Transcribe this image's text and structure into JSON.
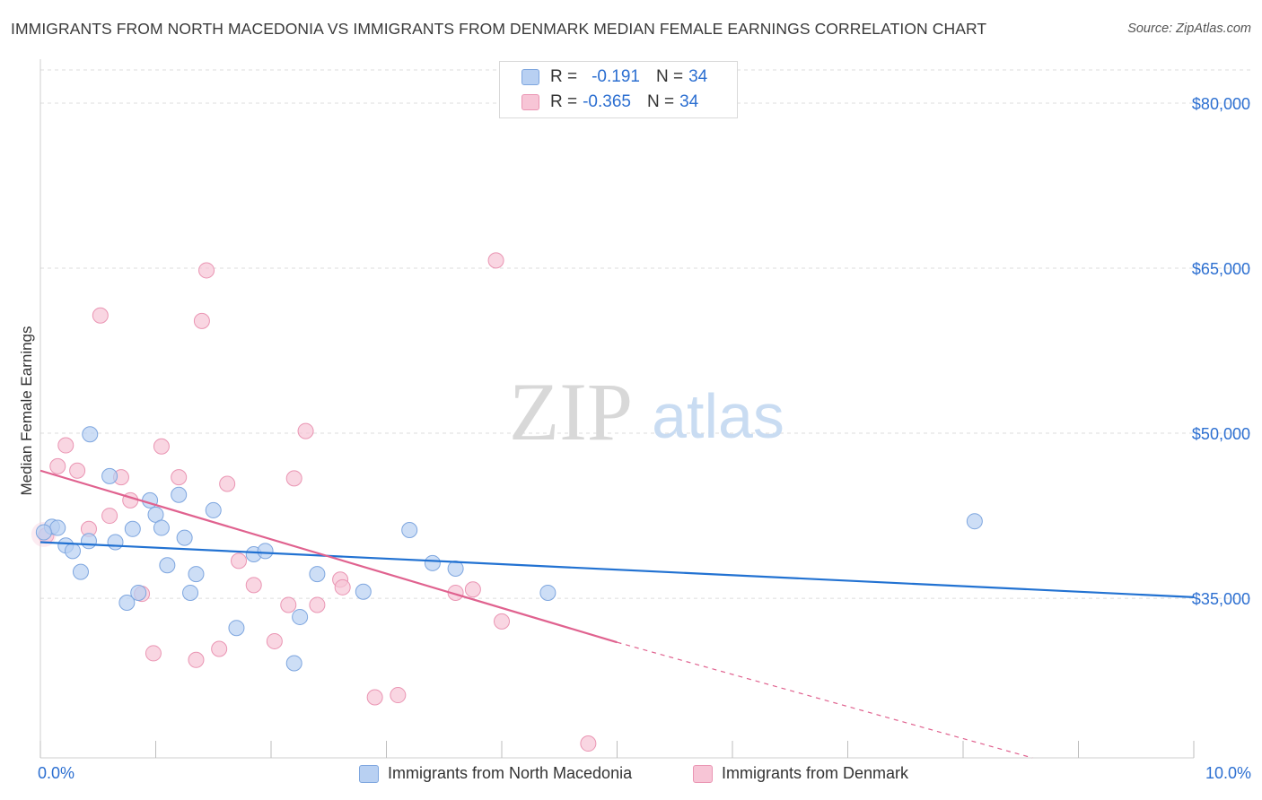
{
  "title": "IMMIGRANTS FROM NORTH MACEDONIA VS IMMIGRANTS FROM DENMARK MEDIAN FEMALE EARNINGS CORRELATION CHART",
  "source": "Source: ZipAtlas.com",
  "watermark": {
    "zip": "ZIP",
    "atlas": "atlas"
  },
  "legend_top": [
    {
      "r_label": "R =",
      "r_value": "-0.191",
      "n_label": "N =",
      "n_value": "34"
    },
    {
      "r_label": "R =",
      "r_value": "-0.365",
      "n_label": "N =",
      "n_value": "34"
    }
  ],
  "legend_bottom": [
    "Immigrants from North Macedonia",
    "Immigrants from Denmark"
  ],
  "colors": {
    "blue_fill": "#b8d0f2",
    "blue_stroke": "#7ea6df",
    "blue_line": "#2272d2",
    "pink_fill": "#f7c5d6",
    "pink_stroke": "#ea95b3",
    "pink_line": "#e0628f",
    "axis_text": "#2c6fd1",
    "grid": "#dcdcdc"
  },
  "chart_data": {
    "type": "scatter",
    "title": "IMMIGRANTS FROM NORTH MACEDONIA VS IMMIGRANTS FROM DENMARK MEDIAN FEMALE EARNINGS CORRELATION CHART",
    "xlabel": "",
    "ylabel": "Median Female Earnings",
    "xlim": [
      0,
      10
    ],
    "ylim": [
      20500,
      83500
    ],
    "x_tick_labels": [
      "0.0%",
      "10.0%"
    ],
    "y_ticks": [
      35000,
      50000,
      65000,
      80000
    ],
    "y_tick_labels": [
      "$35,000",
      "$50,000",
      "$65,000",
      "$80,000"
    ],
    "series": [
      {
        "name": "Immigrants from North Macedonia",
        "r": -0.191,
        "n": 34,
        "points": [
          [
            0.1,
            41500
          ],
          [
            0.15,
            41400
          ],
          [
            0.22,
            39800
          ],
          [
            0.28,
            39300
          ],
          [
            0.35,
            37400
          ],
          [
            0.42,
            40200
          ],
          [
            0.6,
            46100
          ],
          [
            0.65,
            40100
          ],
          [
            0.75,
            34600
          ],
          [
            0.8,
            41300
          ],
          [
            0.85,
            35500
          ],
          [
            0.95,
            43900
          ],
          [
            1.0,
            42600
          ],
          [
            1.05,
            41400
          ],
          [
            1.1,
            38000
          ],
          [
            1.2,
            44400
          ],
          [
            1.25,
            40500
          ],
          [
            1.3,
            35500
          ],
          [
            1.35,
            37200
          ],
          [
            1.5,
            43000
          ],
          [
            1.7,
            32300
          ],
          [
            1.85,
            39000
          ],
          [
            1.95,
            39300
          ],
          [
            2.2,
            29100
          ],
          [
            2.25,
            33300
          ],
          [
            2.4,
            37200
          ],
          [
            2.8,
            35600
          ],
          [
            3.2,
            41200
          ],
          [
            3.4,
            38200
          ],
          [
            3.6,
            37700
          ],
          [
            4.4,
            35500
          ],
          [
            8.1,
            42000
          ],
          [
            0.03,
            41000
          ],
          [
            0.43,
            49900
          ]
        ],
        "trend": {
          "x": [
            0.0,
            10.0
          ],
          "y": [
            40100,
            35100
          ]
        }
      },
      {
        "name": "Immigrants from Denmark",
        "r": -0.365,
        "n": 34,
        "points": [
          [
            0.05,
            40700
          ],
          [
            0.15,
            47000
          ],
          [
            0.22,
            48900
          ],
          [
            0.32,
            46600
          ],
          [
            0.42,
            41300
          ],
          [
            0.52,
            60700
          ],
          [
            0.6,
            42500
          ],
          [
            0.7,
            46000
          ],
          [
            0.78,
            43900
          ],
          [
            0.88,
            35400
          ],
          [
            0.98,
            30000
          ],
          [
            1.05,
            48800
          ],
          [
            1.2,
            46000
          ],
          [
            1.35,
            29400
          ],
          [
            1.4,
            60200
          ],
          [
            1.44,
            64800
          ],
          [
            1.55,
            30400
          ],
          [
            1.62,
            45400
          ],
          [
            1.72,
            38400
          ],
          [
            1.85,
            36200
          ],
          [
            2.03,
            31100
          ],
          [
            2.15,
            34400
          ],
          [
            2.2,
            45900
          ],
          [
            2.3,
            50200
          ],
          [
            2.4,
            34400
          ],
          [
            2.6,
            36700
          ],
          [
            2.62,
            36000
          ],
          [
            2.9,
            26000
          ],
          [
            3.1,
            26200
          ],
          [
            3.6,
            35500
          ],
          [
            3.75,
            35800
          ],
          [
            4.0,
            32900
          ],
          [
            3.95,
            65700
          ],
          [
            4.75,
            21800
          ]
        ],
        "trend": {
          "x": [
            0.0,
            5.0
          ],
          "y": [
            46600,
            31000
          ]
        },
        "trend_dashed": {
          "x": [
            5.0,
            8.6
          ],
          "y": [
            31000,
            20500
          ]
        }
      }
    ]
  }
}
